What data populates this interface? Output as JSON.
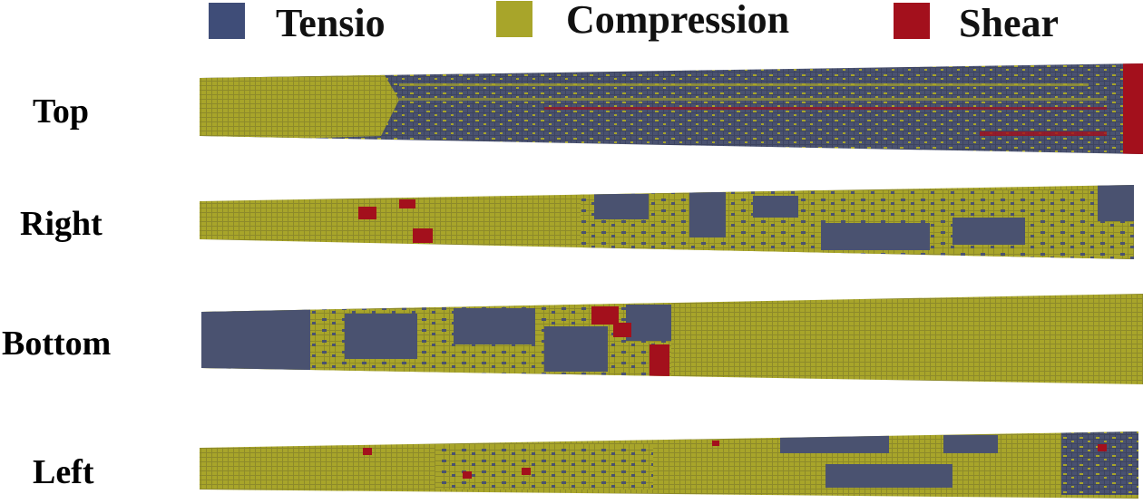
{
  "legend": [
    {
      "label": "Tensio",
      "color": "#3f4d78"
    },
    {
      "label": "Compression",
      "color": "#a8a52a"
    },
    {
      "label": "Shear",
      "color": "#a3101c"
    }
  ],
  "views": [
    {
      "label": "Top",
      "pattern": "compression-then-tension"
    },
    {
      "label": "Right",
      "pattern": "compression-with-tension-patches"
    },
    {
      "label": "Bottom",
      "pattern": "tension-then-compression"
    },
    {
      "label": "Left",
      "pattern": "compression-with-tension-patches"
    }
  ]
}
